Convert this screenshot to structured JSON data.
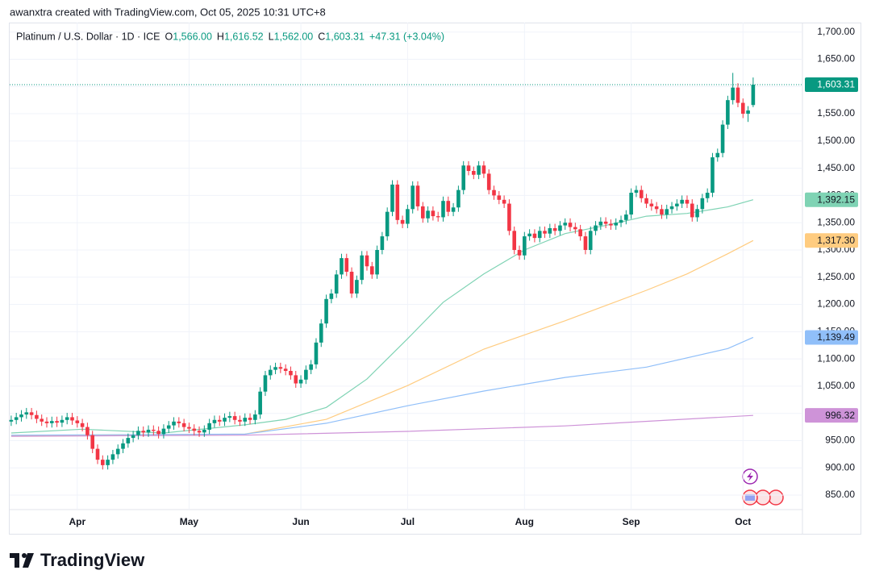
{
  "header": "awanxtra created with TradingView.com, Oct 05, 2025 10:31 UTC+8",
  "branding": "TradingView",
  "chart_data": {
    "type": "candlestick",
    "title": "Platinum / U.S. Dollar · 1D · ICE",
    "legend_values": [
      {
        "key": "O",
        "value": "1,566.00"
      },
      {
        "key": "H",
        "value": "1,616.52"
      },
      {
        "key": "L",
        "value": "1,562.00"
      },
      {
        "key": "C",
        "value": "1,603.31"
      }
    ],
    "change": "+47.31 (+3.04%)",
    "up_color": "#089981",
    "down_color": "#f23645",
    "open": [
      985,
      988,
      993,
      998,
      1002,
      997,
      990,
      985,
      982,
      986,
      983,
      988,
      993,
      987,
      982,
      975,
      960,
      935,
      915,
      905,
      915,
      925,
      935,
      945,
      955,
      960,
      968,
      965,
      970,
      968,
      962,
      972,
      978,
      985,
      982,
      975,
      972,
      968,
      965,
      970,
      982,
      988,
      985,
      992,
      995,
      988,
      985,
      992,
      988,
      998,
      1040,
      1070,
      1080,
      1085,
      1082,
      1078,
      1070,
      1055,
      1062,
      1080,
      1090,
      1130,
      1165,
      1210,
      1220,
      1255,
      1285,
      1260,
      1220,
      1245,
      1290,
      1270,
      1255,
      1300,
      1325,
      1370,
      1420,
      1355,
      1348,
      1375,
      1418,
      1380,
      1358,
      1372,
      1362,
      1360,
      1390,
      1370,
      1378,
      1410,
      1455,
      1445,
      1438,
      1455,
      1440,
      1410,
      1400,
      1392,
      1385,
      1335,
      1300,
      1290,
      1325,
      1330,
      1322,
      1335,
      1330,
      1340,
      1335,
      1345,
      1350,
      1342,
      1338,
      1325,
      1300,
      1335,
      1345,
      1352,
      1348,
      1345,
      1350,
      1355,
      1365,
      1405,
      1410,
      1395,
      1385,
      1380,
      1375,
      1365,
      1375,
      1380,
      1385,
      1392,
      1385,
      1360,
      1375,
      1395,
      1405,
      1470,
      1478,
      1530,
      1575,
      1598,
      1570,
      1550,
      1566
    ],
    "high": [
      996,
      1001,
      1006,
      1010,
      1010,
      1005,
      998,
      993,
      994,
      994,
      996,
      1001,
      1001,
      995,
      990,
      983,
      968,
      943,
      923,
      923,
      933,
      943,
      953,
      963,
      968,
      976,
      976,
      978,
      978,
      976,
      980,
      986,
      993,
      993,
      990,
      983,
      980,
      976,
      978,
      990,
      996,
      996,
      1000,
      1003,
      1003,
      996,
      1000,
      1000,
      1006,
      1048,
      1078,
      1088,
      1093,
      1093,
      1090,
      1086,
      1078,
      1070,
      1088,
      1098,
      1138,
      1173,
      1218,
      1228,
      1263,
      1293,
      1293,
      1268,
      1253,
      1298,
      1298,
      1278,
      1308,
      1333,
      1378,
      1428,
      1428,
      1363,
      1383,
      1426,
      1426,
      1388,
      1380,
      1380,
      1370,
      1398,
      1398,
      1386,
      1418,
      1463,
      1463,
      1453,
      1463,
      1463,
      1448,
      1418,
      1408,
      1400,
      1393,
      1343,
      1308,
      1333,
      1338,
      1338,
      1343,
      1343,
      1348,
      1348,
      1353,
      1358,
      1358,
      1350,
      1346,
      1333,
      1343,
      1353,
      1360,
      1360,
      1356,
      1358,
      1363,
      1373,
      1413,
      1418,
      1418,
      1403,
      1393,
      1388,
      1383,
      1383,
      1388,
      1393,
      1400,
      1400,
      1393,
      1383,
      1403,
      1413,
      1478,
      1486,
      1538,
      1583,
      1625,
      1606,
      1578,
      1564,
      1616.52
    ],
    "low": [
      977,
      980,
      985,
      990,
      989,
      982,
      977,
      974,
      974,
      975,
      975,
      980,
      979,
      974,
      967,
      952,
      927,
      907,
      897,
      897,
      907,
      917,
      927,
      937,
      947,
      952,
      957,
      957,
      960,
      954,
      954,
      964,
      970,
      974,
      967,
      964,
      960,
      957,
      957,
      962,
      974,
      977,
      977,
      984,
      980,
      977,
      977,
      980,
      980,
      990,
      1032,
      1062,
      1072,
      1074,
      1070,
      1062,
      1047,
      1047,
      1054,
      1072,
      1082,
      1122,
      1157,
      1202,
      1212,
      1247,
      1252,
      1212,
      1212,
      1237,
      1262,
      1247,
      1247,
      1292,
      1317,
      1362,
      1347,
      1340,
      1340,
      1367,
      1372,
      1350,
      1350,
      1354,
      1352,
      1352,
      1362,
      1362,
      1370,
      1402,
      1437,
      1430,
      1430,
      1432,
      1402,
      1392,
      1384,
      1377,
      1327,
      1292,
      1282,
      1282,
      1317,
      1314,
      1314,
      1322,
      1322,
      1327,
      1327,
      1337,
      1334,
      1330,
      1317,
      1292,
      1292,
      1327,
      1337,
      1340,
      1337,
      1337,
      1342,
      1347,
      1357,
      1397,
      1387,
      1377,
      1372,
      1367,
      1357,
      1357,
      1367,
      1372,
      1377,
      1377,
      1352,
      1352,
      1367,
      1387,
      1397,
      1462,
      1470,
      1522,
      1567,
      1562,
      1542,
      1535,
      1562
    ],
    "close": [
      988,
      993,
      998,
      1002,
      997,
      990,
      985,
      982,
      986,
      983,
      988,
      993,
      987,
      982,
      975,
      960,
      935,
      915,
      905,
      915,
      925,
      935,
      945,
      955,
      960,
      968,
      965,
      970,
      968,
      962,
      972,
      978,
      985,
      982,
      975,
      972,
      968,
      965,
      970,
      982,
      988,
      985,
      992,
      995,
      988,
      985,
      992,
      988,
      998,
      1040,
      1070,
      1080,
      1085,
      1082,
      1078,
      1070,
      1055,
      1062,
      1080,
      1090,
      1130,
      1165,
      1210,
      1220,
      1255,
      1285,
      1260,
      1220,
      1245,
      1290,
      1270,
      1255,
      1300,
      1325,
      1370,
      1420,
      1355,
      1348,
      1375,
      1418,
      1380,
      1358,
      1372,
      1362,
      1360,
      1390,
      1370,
      1378,
      1410,
      1455,
      1445,
      1438,
      1455,
      1440,
      1410,
      1400,
      1392,
      1385,
      1335,
      1300,
      1290,
      1325,
      1330,
      1322,
      1335,
      1330,
      1340,
      1335,
      1345,
      1350,
      1342,
      1338,
      1325,
      1300,
      1335,
      1345,
      1352,
      1348,
      1345,
      1350,
      1355,
      1365,
      1405,
      1410,
      1395,
      1385,
      1380,
      1375,
      1365,
      1375,
      1380,
      1385,
      1392,
      1385,
      1360,
      1375,
      1395,
      1405,
      1470,
      1478,
      1530,
      1575,
      1598,
      1570,
      1550,
      1556,
      1603.31
    ],
    "last_price": {
      "value": 1603.31,
      "label": "1,603.31"
    },
    "series": [
      {
        "color": "#7fd3b4",
        "x": [
          0,
          14,
          30,
          46,
          54,
          62,
          70,
          78,
          85,
          93,
          101,
          109,
          117,
          125,
          133,
          141,
          146
        ],
        "values": [
          964,
          971,
          964,
          979,
          989,
          1011,
          1063,
          1137,
          1204,
          1256,
          1300,
          1330,
          1345,
          1362,
          1367,
          1379,
          1392.15
        ],
        "last_label": {
          "value": 1392.15,
          "label": "1,392.15"
        }
      },
      {
        "color": "#ffcc80",
        "x": [
          0,
          46,
          62,
          78,
          93,
          109,
          125,
          133,
          141,
          146
        ],
        "values": [
          959,
          962,
          989,
          1051,
          1118,
          1170,
          1226,
          1256,
          1293,
          1317.3
        ],
        "last_label": {
          "value": 1317.3,
          "label": "1,317.30"
        }
      },
      {
        "color": "#90bff9",
        "x": [
          0,
          46,
          62,
          78,
          93,
          109,
          125,
          141,
          146
        ],
        "values": [
          960,
          962,
          982,
          1014,
          1041,
          1066,
          1085,
          1119,
          1139.49
        ],
        "last_label": {
          "value": 1139.49,
          "label": "1,139.49"
        }
      },
      {
        "color": "#ce93d8",
        "x": [
          0,
          46,
          78,
          109,
          146
        ],
        "values": [
          958,
          960,
          967,
          977,
          996.32
        ],
        "last_label": {
          "value": 996.32,
          "label": "996.32"
        }
      }
    ],
    "xlim": [
      -0.3,
      155.7
    ],
    "xticks": [
      {
        "value": 13,
        "label": "Apr"
      },
      {
        "value": 35,
        "label": "May"
      },
      {
        "value": 57,
        "label": "Jun"
      },
      {
        "value": 78,
        "label": "Jul"
      },
      {
        "value": 101,
        "label": "Aug"
      },
      {
        "value": 122,
        "label": "Sep"
      },
      {
        "value": 144,
        "label": "Oct"
      }
    ],
    "ylim": [
      782,
      1741
    ],
    "yticks": [
      {
        "value": 850,
        "label": "850.00"
      },
      {
        "value": 900,
        "label": "900.00"
      },
      {
        "value": 950,
        "label": "950.00"
      },
      {
        "value": 1000,
        "label": "1,000.00"
      },
      {
        "value": 1050,
        "label": "1,050.00"
      },
      {
        "value": 1100,
        "label": "1,100.00"
      },
      {
        "value": 1150,
        "label": "1,150.00"
      },
      {
        "value": 1200,
        "label": "1,200.00"
      },
      {
        "value": 1250,
        "label": "1,250.00"
      },
      {
        "value": 1300,
        "label": "1,300.00"
      },
      {
        "value": 1350,
        "label": "1,350.00"
      },
      {
        "value": 1400,
        "label": "1,400.00"
      },
      {
        "value": 1450,
        "label": "1,450.00"
      },
      {
        "value": 1500,
        "label": "1,500.00"
      },
      {
        "value": 1550,
        "label": "1,550.00"
      },
      {
        "value": 1600,
        "label": "1,600.00"
      },
      {
        "value": 1650,
        "label": "1,650.00"
      },
      {
        "value": 1700,
        "label": "1,700.00"
      }
    ],
    "grid": true
  }
}
